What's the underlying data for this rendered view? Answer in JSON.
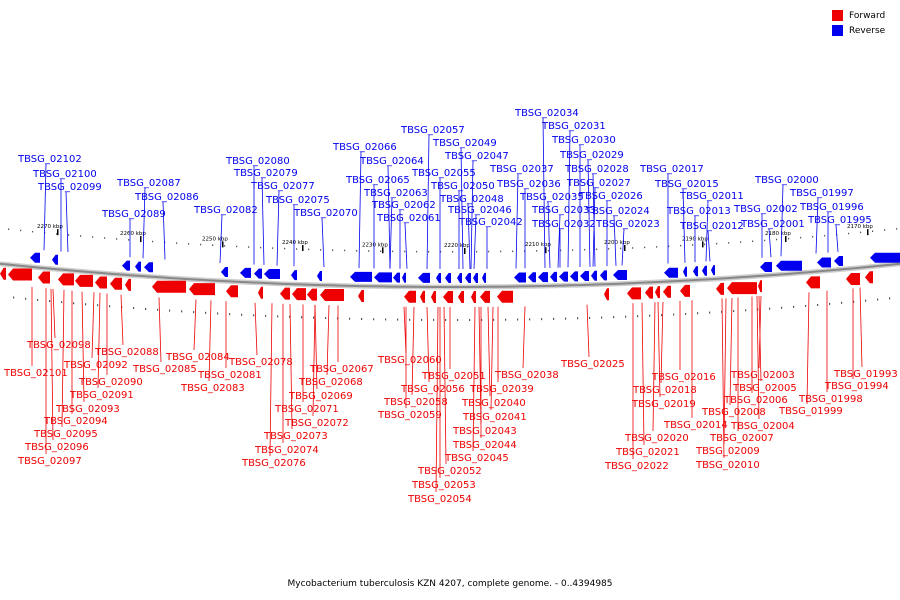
{
  "caption": "Mycobacterium tuberculosis KZN 4207, complete genome. - 0..4394985",
  "legend": [
    {
      "label": "Forward",
      "color": "#ee0000"
    },
    {
      "label": "Reverse",
      "color": "#0000ee"
    }
  ],
  "colors": {
    "forward": "#ee0000",
    "reverse": "#0000ee",
    "backbone": "#888888"
  },
  "ticks": [
    "2270 kbp",
    "2260 kbp",
    "2250 kbp",
    "2240 kbp",
    "2230 kbp",
    "2220 kbp",
    "2210 kbp",
    "2200 kbp",
    "2190 kbp",
    "2180 kbp",
    "2170 kbp"
  ],
  "reverse_genes": [
    "TBSG_02102",
    "TBSG_02100",
    "TBSG_02099",
    "TBSG_02087",
    "TBSG_02089",
    "TBSG_02086",
    "TBSG_02082",
    "TBSG_02080",
    "TBSG_02079",
    "TBSG_02077",
    "TBSG_02075",
    "TBSG_02070",
    "TBSG_02066",
    "TBSG_02065",
    "TBSG_02064",
    "TBSG_02063",
    "TBSG_02062",
    "TBSG_02061",
    "TBSG_02057",
    "TBSG_02055",
    "TBSG_02049",
    "TBSG_02047",
    "TBSG_02050",
    "TBSG_02048",
    "TBSG_02046",
    "TBSG_02042",
    "TBSG_02034",
    "TBSG_02031",
    "TBSG_02030",
    "TBSG_02029",
    "TBSG_02037",
    "TBSG_02036",
    "TBSG_02035",
    "TBSG_02033",
    "TBSG_02032",
    "TBSG_02028",
    "TBSG_02027",
    "TBSG_02026",
    "TBSG_02024",
    "TBSG_02023",
    "TBSG_02017",
    "TBSG_02015",
    "TBSG_02011",
    "TBSG_02013",
    "TBSG_02012",
    "TBSG_02000",
    "TBSG_02002",
    "TBSG_02001",
    "TBSG_01997",
    "TBSG_01996",
    "TBSG_01995"
  ],
  "forward_genes": [
    "TBSG_02098",
    "TBSG_02101",
    "TBSG_02092",
    "TBSG_02088",
    "TBSG_02090",
    "TBSG_02091",
    "TBSG_02093",
    "TBSG_02094",
    "TBSG_02095",
    "TBSG_02096",
    "TBSG_02097",
    "TBSG_02084",
    "TBSG_02085",
    "TBSG_02081",
    "TBSG_02083",
    "TBSG_02078",
    "TBSG_02067",
    "TBSG_02068",
    "TBSG_02069",
    "TBSG_02071",
    "TBSG_02072",
    "TBSG_02073",
    "TBSG_02074",
    "TBSG_02076",
    "TBSG_02060",
    "TBSG_02051",
    "TBSG_02038",
    "TBSG_02056",
    "TBSG_02039",
    "TBSG_02058",
    "TBSG_02040",
    "TBSG_02059",
    "TBSG_02041",
    "TBSG_02043",
    "TBSG_02044",
    "TBSG_02045",
    "TBSG_02052",
    "TBSG_02053",
    "TBSG_02054",
    "TBSG_02025",
    "TBSG_02016",
    "TBSG_02018",
    "TBSG_02019",
    "TBSG_02014",
    "TBSG_02020",
    "TBSG_02021",
    "TBSG_02022",
    "TBSG_02003",
    "TBSG_02005",
    "TBSG_02006",
    "TBSG_02008",
    "TBSG_02004",
    "TBSG_02007",
    "TBSG_02009",
    "TBSG_02010",
    "TBSG_01998",
    "TBSG_01999",
    "TBSG_01993",
    "TBSG_01994"
  ]
}
